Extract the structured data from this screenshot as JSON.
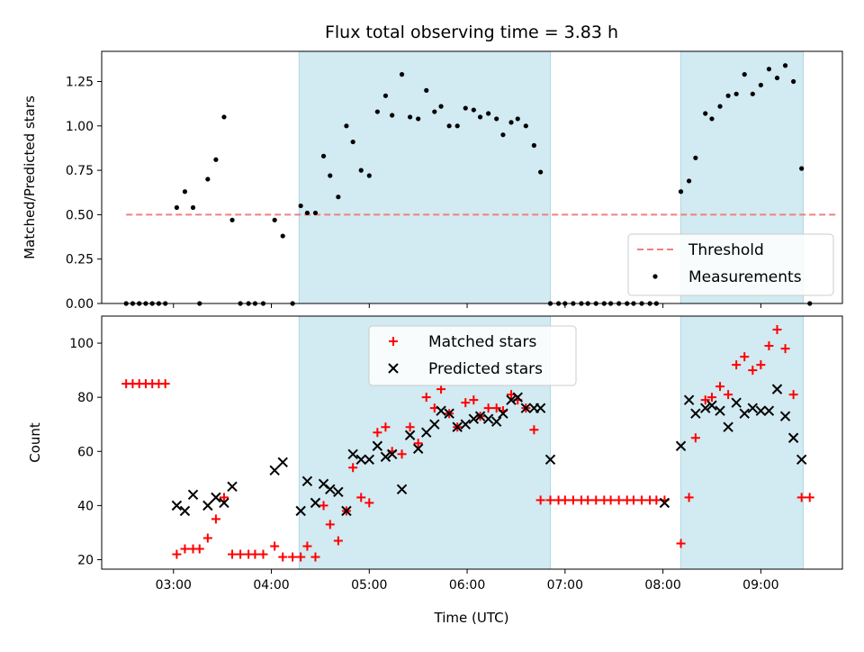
{
  "figure": {
    "title": "Flux total observing time = 3.83 h",
    "xlabel": "Time (UTC)",
    "colors": {
      "band": "#add8e6",
      "threshold": "#f08080",
      "measurement": "#000000",
      "matched": "#ff0000",
      "predicted": "#000000"
    }
  },
  "chart_data": [
    {
      "type": "scatter",
      "ylabel": "Matched/Predicted stars",
      "ylim": [
        0,
        1.42
      ],
      "yticks": [
        0.0,
        0.25,
        0.5,
        0.75,
        1.0,
        1.25
      ],
      "ytick_labels": [
        "0.00",
        "0.25",
        "0.50",
        "0.75",
        "1.00",
        "1.25"
      ],
      "xlim": [
        "02:16",
        "09:50"
      ],
      "xticks": [
        "03:00",
        "04:00",
        "05:00",
        "06:00",
        "07:00",
        "08:00",
        "09:00"
      ],
      "bands": [
        [
          "04:17",
          "06:51"
        ],
        [
          "08:11",
          "09:26"
        ]
      ],
      "threshold": {
        "name": "Threshold",
        "value": 0.5,
        "x_range": [
          "02:31",
          "09:46"
        ]
      },
      "legend": {
        "position": "lower-right",
        "entries": [
          "Threshold",
          "Measurements"
        ]
      },
      "series": [
        {
          "name": "Measurements",
          "marker": "dot",
          "points": [
            [
              "02:31",
              0
            ],
            [
              "02:35",
              0
            ],
            [
              "02:39",
              0
            ],
            [
              "02:43",
              0
            ],
            [
              "02:47",
              0
            ],
            [
              "02:51",
              0
            ],
            [
              "02:55",
              0
            ],
            [
              "03:02",
              0.54
            ],
            [
              "03:07",
              0.63
            ],
            [
              "03:12",
              0.54
            ],
            [
              "03:16",
              0
            ],
            [
              "03:21",
              0.7
            ],
            [
              "03:26",
              0.81
            ],
            [
              "03:31",
              1.05
            ],
            [
              "03:36",
              0.47
            ],
            [
              "03:41",
              0
            ],
            [
              "03:46",
              0
            ],
            [
              "03:50",
              0
            ],
            [
              "03:55",
              0
            ],
            [
              "04:02",
              0.47
            ],
            [
              "04:07",
              0.38
            ],
            [
              "04:13",
              0
            ],
            [
              "04:18",
              0.55
            ],
            [
              "04:22",
              0.51
            ],
            [
              "04:27",
              0.51
            ],
            [
              "04:32",
              0.83
            ],
            [
              "04:36",
              0.72
            ],
            [
              "04:41",
              0.6
            ],
            [
              "04:46",
              1.0
            ],
            [
              "04:50",
              0.91
            ],
            [
              "04:55",
              0.75
            ],
            [
              "05:00",
              0.72
            ],
            [
              "05:05",
              1.08
            ],
            [
              "05:10",
              1.17
            ],
            [
              "05:14",
              1.06
            ],
            [
              "05:20",
              1.29
            ],
            [
              "05:25",
              1.05
            ],
            [
              "05:30",
              1.04
            ],
            [
              "05:35",
              1.2
            ],
            [
              "05:40",
              1.08
            ],
            [
              "05:44",
              1.11
            ],
            [
              "05:49",
              1.0
            ],
            [
              "05:54",
              1.0
            ],
            [
              "05:59",
              1.1
            ],
            [
              "06:04",
              1.09
            ],
            [
              "06:08",
              1.05
            ],
            [
              "06:13",
              1.07
            ],
            [
              "06:18",
              1.04
            ],
            [
              "06:22",
              0.95
            ],
            [
              "06:27",
              1.02
            ],
            [
              "06:31",
              1.04
            ],
            [
              "06:36",
              1.0
            ],
            [
              "06:41",
              0.89
            ],
            [
              "06:45",
              0.74
            ],
            [
              "06:51",
              0
            ],
            [
              "06:56",
              0
            ],
            [
              "07:00",
              0
            ],
            [
              "07:05",
              0
            ],
            [
              "07:10",
              0
            ],
            [
              "07:14",
              0
            ],
            [
              "07:19",
              0
            ],
            [
              "07:24",
              0
            ],
            [
              "07:28",
              0
            ],
            [
              "07:33",
              0
            ],
            [
              "07:38",
              0
            ],
            [
              "07:42",
              0
            ],
            [
              "07:47",
              0
            ],
            [
              "07:52",
              0
            ],
            [
              "07:56",
              0
            ],
            [
              "08:11",
              0.63
            ],
            [
              "08:16",
              0.69
            ],
            [
              "08:20",
              0.82
            ],
            [
              "08:26",
              1.07
            ],
            [
              "08:30",
              1.04
            ],
            [
              "08:35",
              1.11
            ],
            [
              "08:40",
              1.17
            ],
            [
              "08:45",
              1.18
            ],
            [
              "08:50",
              1.29
            ],
            [
              "08:55",
              1.18
            ],
            [
              "09:00",
              1.23
            ],
            [
              "09:05",
              1.32
            ],
            [
              "09:10",
              1.27
            ],
            [
              "09:15",
              1.34
            ],
            [
              "09:20",
              1.25
            ],
            [
              "09:25",
              0.76
            ],
            [
              "09:30",
              0
            ]
          ]
        }
      ]
    },
    {
      "type": "scatter",
      "ylabel": "Count",
      "ylim": [
        16.5,
        110
      ],
      "yticks": [
        20,
        40,
        60,
        80,
        100
      ],
      "xlim": [
        "02:16",
        "09:50"
      ],
      "xticks": [
        "03:00",
        "04:00",
        "05:00",
        "06:00",
        "07:00",
        "08:00",
        "09:00"
      ],
      "xtick_labels": [
        "03:00",
        "04:00",
        "05:00",
        "06:00",
        "07:00",
        "08:00",
        "09:00"
      ],
      "bands": [
        [
          "04:17",
          "06:51"
        ],
        [
          "08:11",
          "09:26"
        ]
      ],
      "legend": {
        "position": "upper-center",
        "entries": [
          "Matched stars",
          "Predicted stars"
        ]
      },
      "series": [
        {
          "name": "Matched stars",
          "marker": "plus",
          "points": [
            [
              "02:31",
              85
            ],
            [
              "02:35",
              85
            ],
            [
              "02:39",
              85
            ],
            [
              "02:43",
              85
            ],
            [
              "02:47",
              85
            ],
            [
              "02:51",
              85
            ],
            [
              "02:55",
              85
            ],
            [
              "03:02",
              22
            ],
            [
              "03:07",
              24
            ],
            [
              "03:12",
              24
            ],
            [
              "03:16",
              24
            ],
            [
              "03:21",
              28
            ],
            [
              "03:26",
              35
            ],
            [
              "03:31",
              43
            ],
            [
              "03:36",
              22
            ],
            [
              "03:41",
              22
            ],
            [
              "03:46",
              22
            ],
            [
              "03:50",
              22
            ],
            [
              "03:55",
              22
            ],
            [
              "04:02",
              25
            ],
            [
              "04:07",
              21
            ],
            [
              "04:13",
              21
            ],
            [
              "04:18",
              21
            ],
            [
              "04:22",
              25
            ],
            [
              "04:27",
              21
            ],
            [
              "04:32",
              40
            ],
            [
              "04:36",
              33
            ],
            [
              "04:41",
              27
            ],
            [
              "04:46",
              38
            ],
            [
              "04:50",
              54
            ],
            [
              "04:55",
              43
            ],
            [
              "05:00",
              41
            ],
            [
              "05:05",
              67
            ],
            [
              "05:10",
              69
            ],
            [
              "05:14",
              60
            ],
            [
              "05:20",
              59
            ],
            [
              "05:25",
              69
            ],
            [
              "05:30",
              63
            ],
            [
              "05:35",
              80
            ],
            [
              "05:40",
              76
            ],
            [
              "05:44",
              83
            ],
            [
              "05:49",
              74
            ],
            [
              "05:54",
              69
            ],
            [
              "05:59",
              78
            ],
            [
              "06:04",
              79
            ],
            [
              "06:08",
              73
            ],
            [
              "06:13",
              76
            ],
            [
              "06:18",
              76
            ],
            [
              "06:22",
              75
            ],
            [
              "06:27",
              81
            ],
            [
              "06:31",
              79
            ],
            [
              "06:36",
              76
            ],
            [
              "06:41",
              68
            ],
            [
              "06:45",
              42
            ],
            [
              "06:51",
              42
            ],
            [
              "06:56",
              42
            ],
            [
              "07:00",
              42
            ],
            [
              "07:05",
              42
            ],
            [
              "07:10",
              42
            ],
            [
              "07:14",
              42
            ],
            [
              "07:19",
              42
            ],
            [
              "07:24",
              42
            ],
            [
              "07:28",
              42
            ],
            [
              "07:33",
              42
            ],
            [
              "07:38",
              42
            ],
            [
              "07:42",
              42
            ],
            [
              "07:47",
              42
            ],
            [
              "07:52",
              42
            ],
            [
              "07:56",
              42
            ],
            [
              "08:01",
              42
            ],
            [
              "08:11",
              26
            ],
            [
              "08:16",
              43
            ],
            [
              "08:20",
              65
            ],
            [
              "08:26",
              79
            ],
            [
              "08:30",
              80
            ],
            [
              "08:35",
              84
            ],
            [
              "08:40",
              81
            ],
            [
              "08:45",
              92
            ],
            [
              "08:50",
              95
            ],
            [
              "08:55",
              90
            ],
            [
              "09:00",
              92
            ],
            [
              "09:05",
              99
            ],
            [
              "09:10",
              105
            ],
            [
              "09:15",
              98
            ],
            [
              "09:20",
              81
            ],
            [
              "09:25",
              43
            ],
            [
              "09:30",
              43
            ]
          ]
        },
        {
          "name": "Predicted stars",
          "marker": "x",
          "points": [
            [
              "03:02",
              40
            ],
            [
              "03:07",
              38
            ],
            [
              "03:12",
              44
            ],
            [
              "03:21",
              40
            ],
            [
              "03:26",
              43
            ],
            [
              "03:31",
              41
            ],
            [
              "03:36",
              47
            ],
            [
              "04:02",
              53
            ],
            [
              "04:07",
              56
            ],
            [
              "04:18",
              38
            ],
            [
              "04:22",
              49
            ],
            [
              "04:27",
              41
            ],
            [
              "04:32",
              48
            ],
            [
              "04:36",
              46
            ],
            [
              "04:41",
              45
            ],
            [
              "04:46",
              38
            ],
            [
              "04:50",
              59
            ],
            [
              "04:55",
              57
            ],
            [
              "05:00",
              57
            ],
            [
              "05:05",
              62
            ],
            [
              "05:10",
              58
            ],
            [
              "05:14",
              59
            ],
            [
              "05:20",
              46
            ],
            [
              "05:25",
              66
            ],
            [
              "05:30",
              61
            ],
            [
              "05:35",
              67
            ],
            [
              "05:40",
              70
            ],
            [
              "05:44",
              75
            ],
            [
              "05:49",
              74
            ],
            [
              "05:54",
              69
            ],
            [
              "05:59",
              70
            ],
            [
              "06:04",
              72
            ],
            [
              "06:08",
              73
            ],
            [
              "06:13",
              72
            ],
            [
              "06:18",
              71
            ],
            [
              "06:22",
              74
            ],
            [
              "06:27",
              79
            ],
            [
              "06:31",
              80
            ],
            [
              "06:36",
              76
            ],
            [
              "06:41",
              76
            ],
            [
              "06:45",
              76
            ],
            [
              "06:51",
              57
            ],
            [
              "08:01",
              41
            ],
            [
              "08:11",
              62
            ],
            [
              "08:16",
              79
            ],
            [
              "08:20",
              74
            ],
            [
              "08:26",
              76
            ],
            [
              "08:30",
              77
            ],
            [
              "08:35",
              75
            ],
            [
              "08:40",
              69
            ],
            [
              "08:45",
              78
            ],
            [
              "08:50",
              74
            ],
            [
              "08:55",
              76
            ],
            [
              "09:00",
              75
            ],
            [
              "09:05",
              75
            ],
            [
              "09:10",
              83
            ],
            [
              "09:15",
              73
            ],
            [
              "09:20",
              65
            ],
            [
              "09:25",
              57
            ]
          ]
        }
      ]
    }
  ]
}
